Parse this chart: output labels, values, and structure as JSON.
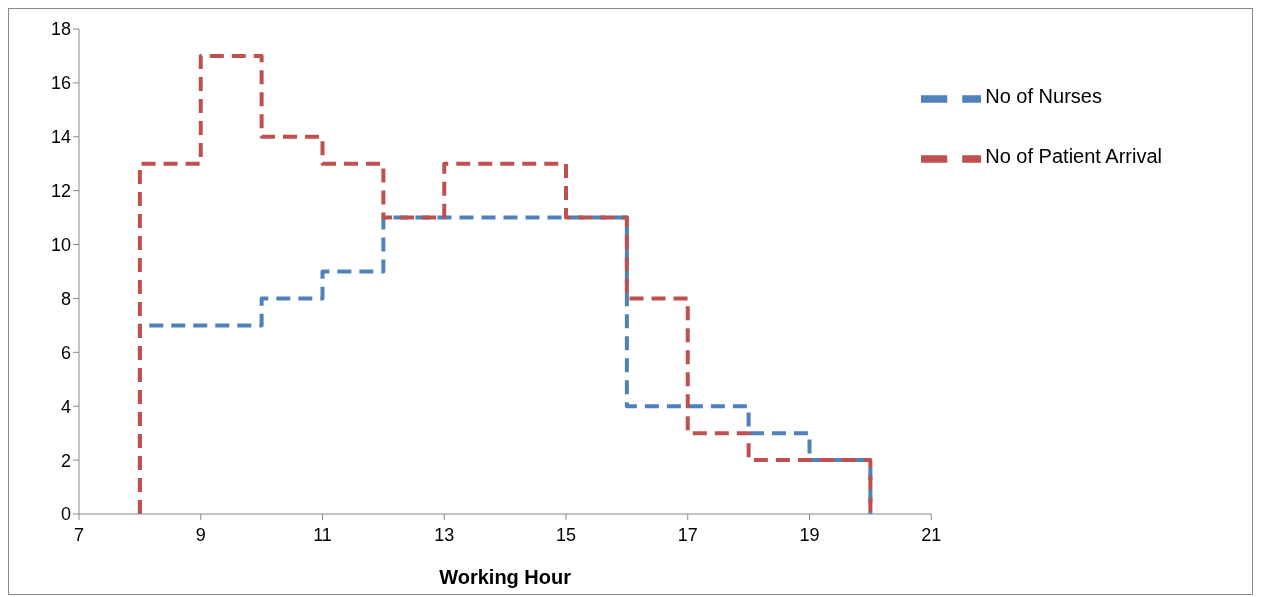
{
  "chart_data": {
    "type": "step",
    "xlabel": "Working Hour",
    "xlim": [
      7,
      21
    ],
    "xticks": [
      7,
      9,
      11,
      13,
      15,
      17,
      19,
      21
    ],
    "ylim": [
      0,
      18
    ],
    "yticks": [
      0,
      2,
      4,
      6,
      8,
      10,
      12,
      14,
      16,
      18
    ],
    "grid": false,
    "legend": "top right",
    "line_style": "dashed",
    "marker": "none",
    "series": [
      {
        "name": "No of Nurses",
        "color": "#4f81bd",
        "x": [
          8,
          8,
          10,
          11,
          12,
          16,
          18,
          19,
          20,
          20
        ],
        "values": [
          0,
          7,
          8,
          9,
          11,
          4,
          3,
          2,
          2,
          0
        ]
      },
      {
        "name": "No of Patient Arrival",
        "color": "#c0504d",
        "x": [
          8,
          8,
          9,
          10,
          11,
          12,
          13,
          15,
          16,
          17,
          18,
          20,
          20
        ],
        "values": [
          0,
          13,
          17,
          14,
          13,
          11,
          13,
          11,
          8,
          3,
          2,
          2,
          0
        ]
      }
    ]
  }
}
